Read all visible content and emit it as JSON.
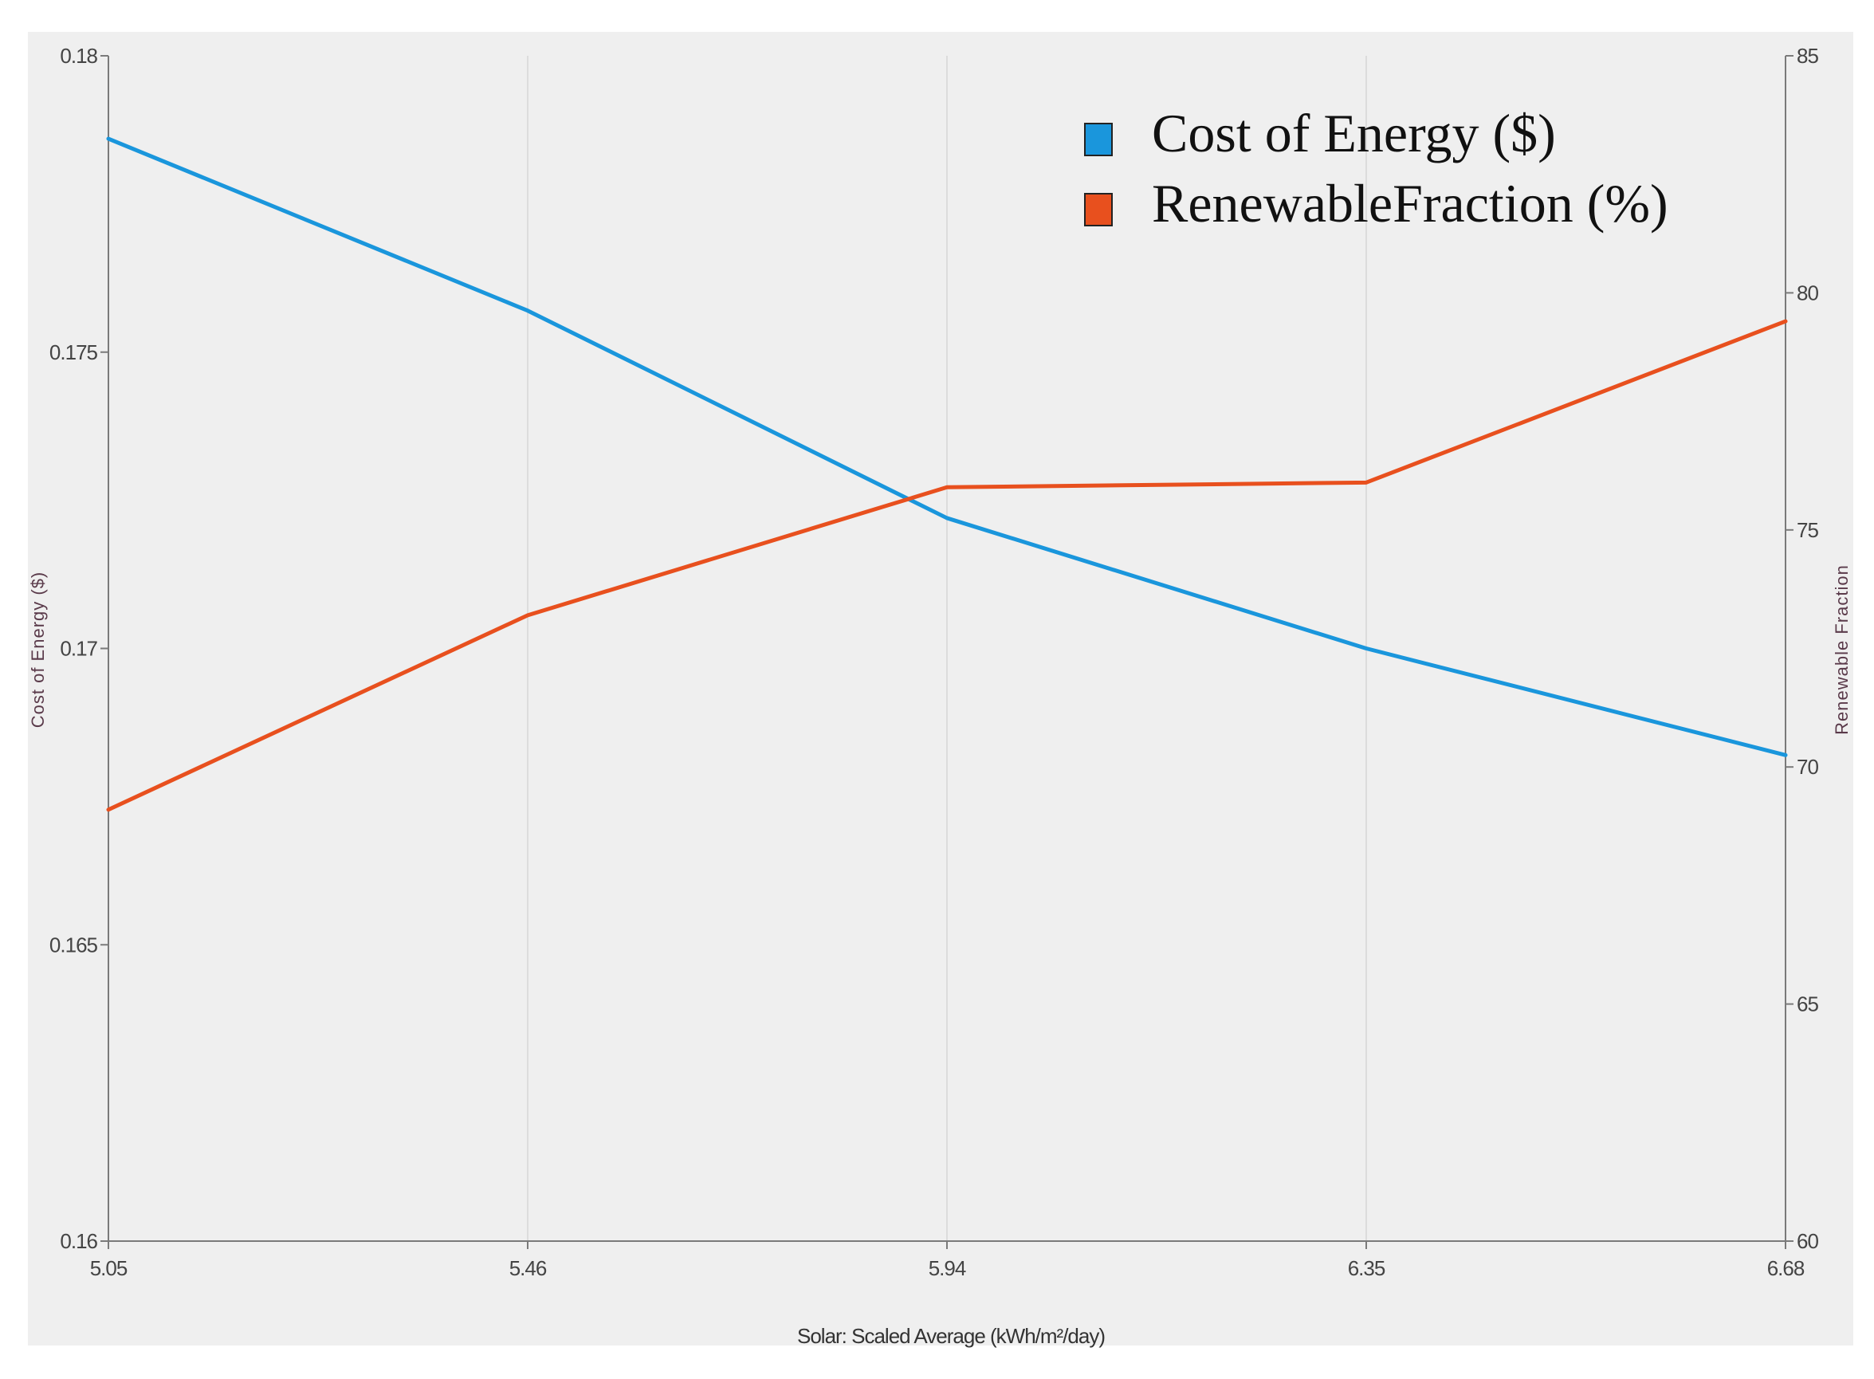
{
  "chart_data": {
    "type": "line",
    "x": [
      5.05,
      5.46,
      5.94,
      6.35,
      6.68
    ],
    "x_tick_labels": [
      "5.05",
      "5.46",
      "5.94",
      "6.35",
      "6.68"
    ],
    "xlabel": "Solar: Scaled Average (kWh/m²/day)",
    "ylabel_left": "Cost of Energy ($)",
    "ylabel_right": "Renewable Fraction",
    "ylim_left": [
      0.16,
      0.18
    ],
    "ylim_right": [
      60,
      85
    ],
    "y_ticks_left": [
      "0.16",
      "0.165",
      "0.17",
      "0.175",
      "0.18"
    ],
    "y_ticks_right": [
      "60",
      "65",
      "70",
      "75",
      "80",
      "85"
    ],
    "series": [
      {
        "name": "Cost of Energy ($)",
        "axis": "left",
        "color": "#1a96dc",
        "values": [
          0.1786,
          0.1757,
          0.1722,
          0.17,
          0.1682
        ]
      },
      {
        "name": "RenewableFraction (%)",
        "axis": "right",
        "color": "#e8501e",
        "values": [
          69.1,
          73.2,
          75.9,
          76.0,
          79.4
        ]
      }
    ],
    "grid": "vertical",
    "legend_position": "top-right"
  }
}
